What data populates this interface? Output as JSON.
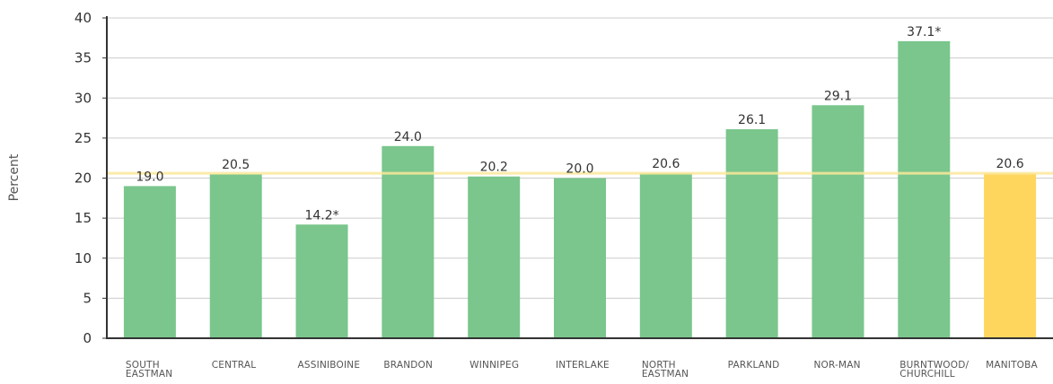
{
  "chart_data": {
    "type": "bar",
    "ylabel": "Percent",
    "ylim": [
      0,
      40
    ],
    "yticks": [
      0,
      5,
      10,
      15,
      20,
      25,
      30,
      35,
      40
    ],
    "grid": true,
    "categories": [
      [
        "SOUTH",
        "EASTMAN"
      ],
      [
        "CENTRAL"
      ],
      [
        "ASSINIBOINE"
      ],
      [
        "BRANDON"
      ],
      [
        "WINNIPEG"
      ],
      [
        "INTERLAKE"
      ],
      [
        "NORTH",
        "EASTMAN"
      ],
      [
        "PARKLAND"
      ],
      [
        "NOR-MAN"
      ],
      [
        "BURNTWOOD/",
        "CHURCHILL"
      ],
      [
        "MANITOBA"
      ]
    ],
    "values": [
      19.0,
      20.5,
      14.2,
      24.0,
      20.2,
      20.0,
      20.6,
      26.1,
      29.1,
      37.1,
      20.6
    ],
    "value_labels": [
      "19.0",
      "20.5",
      "14.2*",
      "24.0",
      "20.2",
      "20.0",
      "20.6",
      "26.1",
      "29.1",
      "37.1*",
      "20.6"
    ],
    "reference_line": 20.6,
    "colors": {
      "bar": "#7ac68c",
      "highlight_bar": "#fed65e",
      "reference_line": "#fbe79a",
      "grid": "#cccccc",
      "axis": "#333333"
    },
    "highlight_index": 10
  }
}
